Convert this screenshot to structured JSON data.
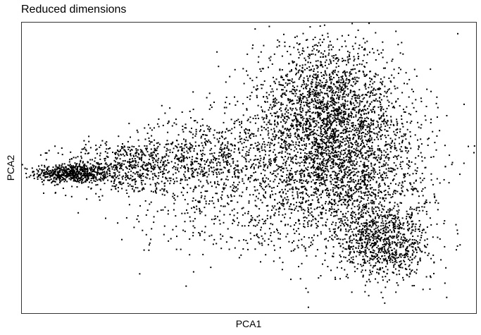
{
  "chart_data": {
    "type": "scatter",
    "title": "Reduced dimensions",
    "xlabel": "PCA1",
    "ylabel": "PCA2",
    "xlim": [
      0,
      100
    ],
    "ylim": [
      0,
      100
    ],
    "x_ticks_shown": false,
    "y_ticks_shown": false,
    "grid": false,
    "legend": "none",
    "point_color": "#000000",
    "series": [
      {
        "clusters": [
          {
            "label": "left-lobe",
            "center": [
              11.0,
              48.0
            ],
            "spread": [
              4.0,
              1.6
            ],
            "weight": 0.08
          },
          {
            "label": "left-arm",
            "center": [
              22.0,
              50.0
            ],
            "spread": [
              7.0,
              4.5
            ],
            "weight": 0.08
          },
          {
            "label": "middle-bridge",
            "center": [
              40.0,
              54.0
            ],
            "spread": [
              8.0,
              7.0
            ],
            "weight": 0.1
          },
          {
            "label": "upper-right-lobe",
            "center": [
              67.0,
              70.0
            ],
            "spread": [
              8.0,
              12.0
            ],
            "weight": 0.28
          },
          {
            "label": "main-body",
            "center": [
              70.0,
              48.0
            ],
            "spread": [
              10.0,
              13.0
            ],
            "weight": 0.3
          },
          {
            "label": "lower-right-lobe",
            "center": [
              80.0,
              24.0
            ],
            "spread": [
              5.0,
              6.5
            ],
            "weight": 0.12
          },
          {
            "label": "lower-scatter",
            "center": [
              45.0,
              34.0
            ],
            "spread": [
              10.0,
              8.0
            ],
            "weight": 0.04
          }
        ]
      }
    ]
  }
}
